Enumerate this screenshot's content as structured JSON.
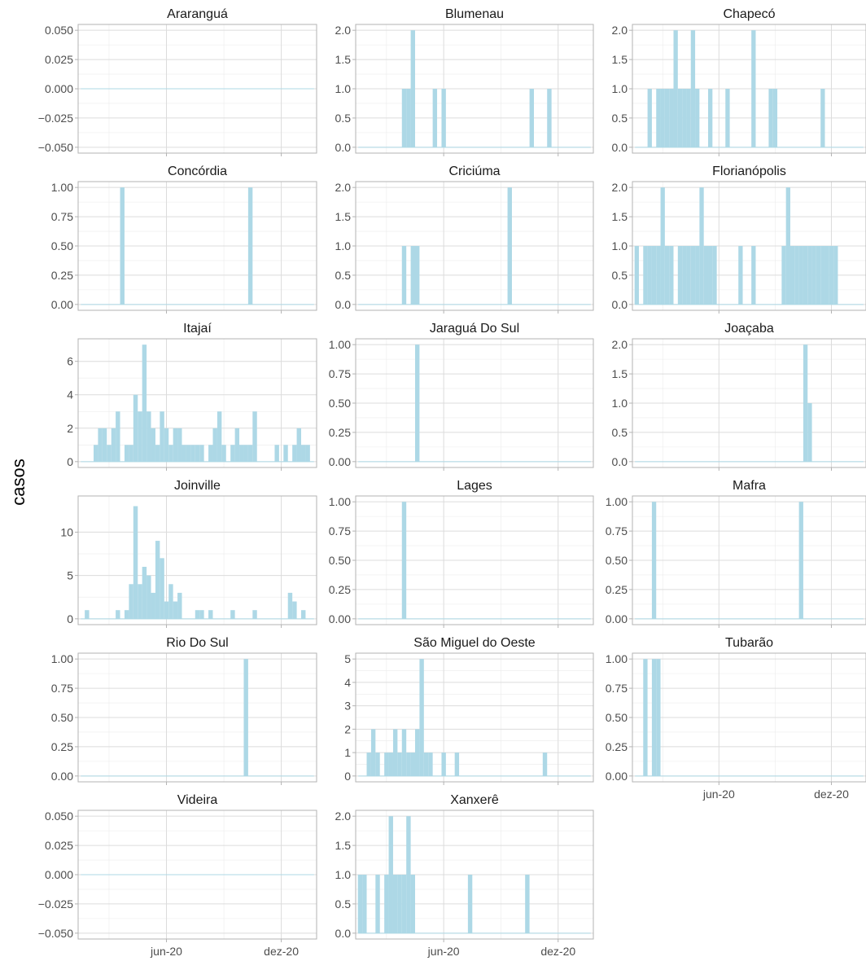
{
  "colors": {
    "bar": "#add8e6",
    "grid": "#dcdcdc",
    "grid_minor": "#ebebeb",
    "axis_text": "#4d4d4d",
    "border": "#b3b3b3"
  },
  "ylabel": "casos",
  "x_ticks": [
    "jun-20",
    "dez-20"
  ],
  "chart_data": [
    {
      "type": "bar",
      "title": "Araranguá",
      "ylim": [
        -0.05,
        0.05
      ],
      "yticks": [
        -0.05,
        -0.025,
        0,
        0.025,
        0.05
      ],
      "ytick_labels": [
        "−0.050",
        "−0.025",
        "0.000",
        "0.025",
        "0.050"
      ],
      "x": [],
      "values": []
    },
    {
      "type": "bar",
      "title": "Blumenau",
      "ylim": [
        0,
        2
      ],
      "yticks": [
        0,
        0.5,
        1,
        1.5,
        2
      ],
      "ytick_labels": [
        "0.0",
        "0.5",
        "1.0",
        "1.5",
        "2.0"
      ],
      "x": [
        11,
        12,
        13,
        18,
        20,
        40,
        44
      ],
      "values": [
        1,
        1,
        2,
        1,
        1,
        1,
        1
      ]
    },
    {
      "type": "bar",
      "title": "Chapecó",
      "ylim": [
        0,
        2
      ],
      "yticks": [
        0,
        0.5,
        1,
        1.5,
        2
      ],
      "ytick_labels": [
        "0.0",
        "0.5",
        "1.0",
        "1.5",
        "2.0"
      ],
      "x": [
        4,
        6,
        7,
        8,
        9,
        10,
        11,
        12,
        13,
        14,
        15,
        18,
        22,
        28,
        32,
        33,
        44
      ],
      "values": [
        1,
        1,
        1,
        1,
        1,
        2,
        1,
        1,
        1,
        2,
        1,
        1,
        1,
        2,
        1,
        1,
        1
      ]
    },
    {
      "type": "bar",
      "title": "Concórdia",
      "ylim": [
        0,
        1
      ],
      "yticks": [
        0,
        0.25,
        0.5,
        0.75,
        1
      ],
      "ytick_labels": [
        "0.00",
        "0.25",
        "0.50",
        "0.75",
        "1.00"
      ],
      "x": [
        10,
        39
      ],
      "values": [
        1,
        1
      ]
    },
    {
      "type": "bar",
      "title": "Criciúma",
      "ylim": [
        0,
        2
      ],
      "yticks": [
        0,
        0.5,
        1,
        1.5,
        2
      ],
      "ytick_labels": [
        "0.0",
        "0.5",
        "1.0",
        "1.5",
        "2.0"
      ],
      "x": [
        11,
        13,
        14,
        35
      ],
      "values": [
        1,
        1,
        1,
        2
      ]
    },
    {
      "type": "bar",
      "title": "Florianópolis",
      "ylim": [
        0,
        2
      ],
      "yticks": [
        0,
        0.5,
        1,
        1.5,
        2
      ],
      "ytick_labels": [
        "0.0",
        "0.5",
        "1.0",
        "1.5",
        "2.0"
      ],
      "x": [
        1,
        3,
        4,
        5,
        6,
        7,
        8,
        9,
        11,
        12,
        13,
        14,
        15,
        16,
        17,
        18,
        19,
        25,
        28,
        35,
        36,
        37,
        38,
        39,
        40,
        41,
        42,
        43,
        44,
        45,
        46,
        47
      ],
      "values": [
        1,
        1,
        1,
        1,
        1,
        2,
        1,
        1,
        1,
        1,
        1,
        1,
        1,
        2,
        1,
        1,
        1,
        1,
        1,
        1,
        2,
        1,
        1,
        1,
        1,
        1,
        1,
        1,
        1,
        1,
        1,
        1
      ]
    },
    {
      "type": "bar",
      "title": "Itajaí",
      "ylim": [
        0,
        7
      ],
      "yticks": [
        0,
        2,
        4,
        6
      ],
      "ytick_labels": [
        "0",
        "2",
        "4",
        "6"
      ],
      "x": [
        4,
        5,
        6,
        7,
        8,
        9,
        11,
        12,
        13,
        14,
        15,
        16,
        17,
        18,
        19,
        20,
        21,
        22,
        23,
        24,
        25,
        26,
        27,
        28,
        30,
        31,
        32,
        33,
        35,
        36,
        37,
        38,
        39,
        40,
        45,
        47,
        49,
        50,
        51,
        52
      ],
      "values": [
        1,
        2,
        2,
        1,
        2,
        3,
        1,
        1,
        4,
        3,
        7,
        3,
        2,
        1,
        3,
        2,
        1,
        2,
        2,
        1,
        1,
        1,
        1,
        1,
        1,
        2,
        3,
        1,
        1,
        2,
        1,
        1,
        1,
        3,
        1,
        1,
        1,
        2,
        1,
        1
      ]
    },
    {
      "type": "bar",
      "title": "Jaraguá Do Sul",
      "ylim": [
        0,
        1
      ],
      "yticks": [
        0,
        0.25,
        0.5,
        0.75,
        1
      ],
      "ytick_labels": [
        "0.00",
        "0.25",
        "0.50",
        "0.75",
        "1.00"
      ],
      "x": [
        14
      ],
      "values": [
        1
      ]
    },
    {
      "type": "bar",
      "title": "Joaçaba",
      "ylim": [
        0,
        2
      ],
      "yticks": [
        0,
        0.5,
        1,
        1.5,
        2
      ],
      "ytick_labels": [
        "0.0",
        "0.5",
        "1.0",
        "1.5",
        "2.0"
      ],
      "x": [
        40,
        41
      ],
      "values": [
        2,
        1
      ]
    },
    {
      "type": "bar",
      "title": "Joinville",
      "ylim": [
        0,
        13.5
      ],
      "yticks": [
        0,
        5,
        10
      ],
      "ytick_labels": [
        "0",
        "5",
        "10"
      ],
      "x": [
        2,
        9,
        11,
        12,
        13,
        14,
        15,
        16,
        17,
        18,
        19,
        20,
        21,
        22,
        23,
        27,
        28,
        30,
        35,
        40,
        48,
        49,
        51
      ],
      "values": [
        1,
        1,
        1,
        4,
        13,
        4,
        6,
        5,
        3,
        9,
        7,
        2,
        4,
        2,
        3,
        1,
        1,
        1,
        1,
        1,
        3,
        2,
        1
      ]
    },
    {
      "type": "bar",
      "title": "Lages",
      "ylim": [
        0,
        1
      ],
      "yticks": [
        0,
        0.25,
        0.5,
        0.75,
        1
      ],
      "ytick_labels": [
        "0.00",
        "0.25",
        "0.50",
        "0.75",
        "1.00"
      ],
      "x": [
        11
      ],
      "values": [
        1
      ]
    },
    {
      "type": "bar",
      "title": "Mafra",
      "ylim": [
        0,
        1
      ],
      "yticks": [
        0,
        0.25,
        0.5,
        0.75,
        1
      ],
      "ytick_labels": [
        "0.00",
        "0.25",
        "0.50",
        "0.75",
        "1.00"
      ],
      "x": [
        5,
        39
      ],
      "values": [
        1,
        1
      ]
    },
    {
      "type": "bar",
      "title": "Rio Do Sul",
      "ylim": [
        0,
        1
      ],
      "yticks": [
        0,
        0.25,
        0.5,
        0.75,
        1
      ],
      "ytick_labels": [
        "0.00",
        "0.25",
        "0.50",
        "0.75",
        "1.00"
      ],
      "x": [
        38
      ],
      "values": [
        1
      ]
    },
    {
      "type": "bar",
      "title": "São Miguel do Oeste",
      "ylim": [
        0,
        5
      ],
      "yticks": [
        0,
        1,
        2,
        3,
        4,
        5
      ],
      "ytick_labels": [
        "0",
        "1",
        "2",
        "3",
        "4",
        "5"
      ],
      "x": [
        3,
        4,
        5,
        7,
        8,
        9,
        10,
        11,
        12,
        13,
        14,
        15,
        16,
        17,
        20,
        23,
        43
      ],
      "values": [
        1,
        2,
        1,
        1,
        1,
        2,
        1,
        2,
        1,
        1,
        2,
        5,
        1,
        1,
        1,
        1,
        1
      ]
    },
    {
      "type": "bar",
      "title": "Tubarão",
      "ylim": [
        0,
        1
      ],
      "yticks": [
        0,
        0.25,
        0.5,
        0.75,
        1
      ],
      "ytick_labels": [
        "0.00",
        "0.25",
        "0.50",
        "0.75",
        "1.00"
      ],
      "x": [
        3,
        5,
        6
      ],
      "values": [
        1,
        1,
        1
      ]
    },
    {
      "type": "bar",
      "title": "Videira",
      "ylim": [
        -0.05,
        0.05
      ],
      "yticks": [
        -0.05,
        -0.025,
        0,
        0.025,
        0.05
      ],
      "ytick_labels": [
        "−0.050",
        "−0.025",
        "0.000",
        "0.025",
        "0.050"
      ],
      "x": [],
      "values": []
    },
    {
      "type": "bar",
      "title": "Xanxerê",
      "ylim": [
        0,
        2
      ],
      "yticks": [
        0,
        0.5,
        1,
        1.5,
        2
      ],
      "ytick_labels": [
        "0.0",
        "0.5",
        "1.0",
        "1.5",
        "2.0"
      ],
      "x": [
        1,
        2,
        5,
        7,
        8,
        9,
        10,
        11,
        12,
        13,
        26,
        39
      ],
      "values": [
        1,
        1,
        1,
        1,
        2,
        1,
        1,
        1,
        2,
        1,
        1,
        1
      ]
    }
  ]
}
